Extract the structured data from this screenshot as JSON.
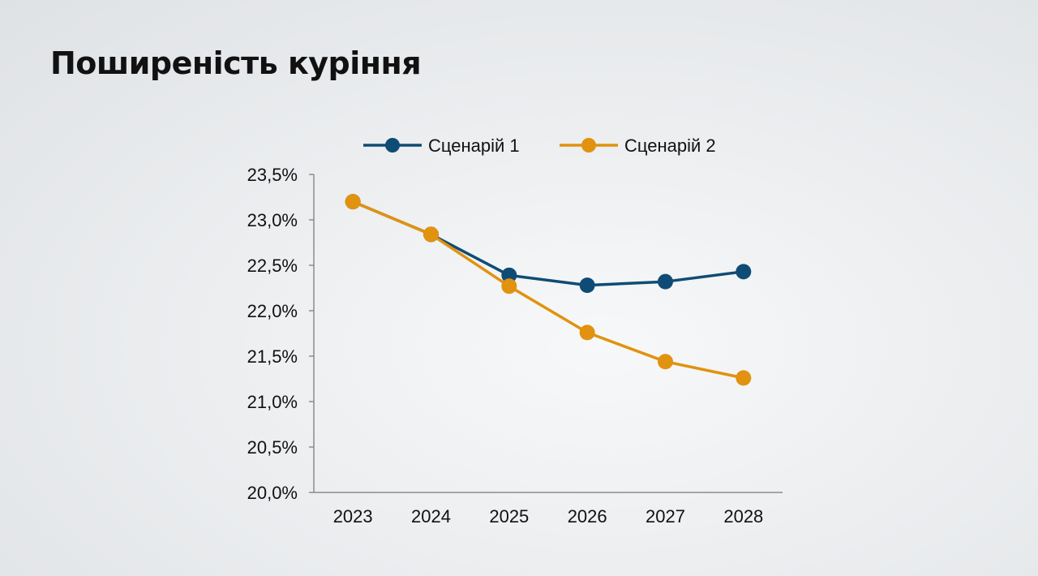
{
  "slide": {
    "title": "Поширеність куріння"
  },
  "colors": {
    "scenario_1": "#0f4c75",
    "scenario_2": "#e1920e",
    "axis": "#8c8c8c",
    "text": "#111111"
  },
  "chart_data": {
    "type": "line",
    "title": "",
    "xlabel": "",
    "ylabel": "",
    "categories": [
      "2023",
      "2024",
      "2025",
      "2026",
      "2027",
      "2028"
    ],
    "ylim": [
      20.0,
      23.5
    ],
    "y_ticks": [
      20.0,
      20.5,
      21.0,
      21.5,
      22.0,
      22.5,
      23.0,
      23.5
    ],
    "y_tick_labels": [
      "20,0%",
      "20,5%",
      "21,0%",
      "21,5%",
      "22,0%",
      "22,5%",
      "23,0%",
      "23,5%"
    ],
    "grid": false,
    "legend_position": "top-center",
    "series": [
      {
        "name": "Сценарій 1",
        "color": "#0f4c75",
        "values": [
          23.2,
          22.84,
          22.39,
          22.28,
          22.32,
          22.43
        ]
      },
      {
        "name": "Сценарій 2",
        "color": "#e1920e",
        "values": [
          23.2,
          22.84,
          22.27,
          21.76,
          21.44,
          21.26
        ]
      }
    ]
  }
}
